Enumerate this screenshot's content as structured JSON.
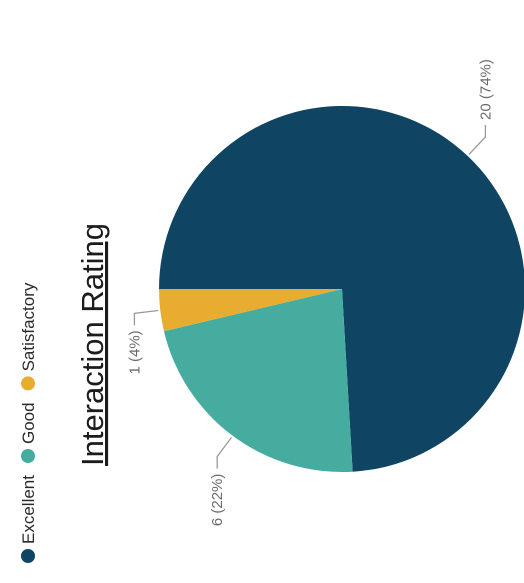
{
  "chart_data": {
    "type": "pie",
    "title": "Interaction Rating",
    "categories": [
      "Excellent",
      "Good",
      "Satisfactory"
    ],
    "values": [
      20,
      6,
      1
    ],
    "percentages": [
      "74%",
      "22%",
      "4%"
    ],
    "labels": [
      "20 (74%)",
      "6 (22%)",
      "1 (4%)"
    ],
    "colors": [
      "#0f4463",
      "#46aca0",
      "#e8ad30"
    ],
    "legend_position": "top-left",
    "orientation": "rotated 90 degrees counter-clockwise"
  }
}
